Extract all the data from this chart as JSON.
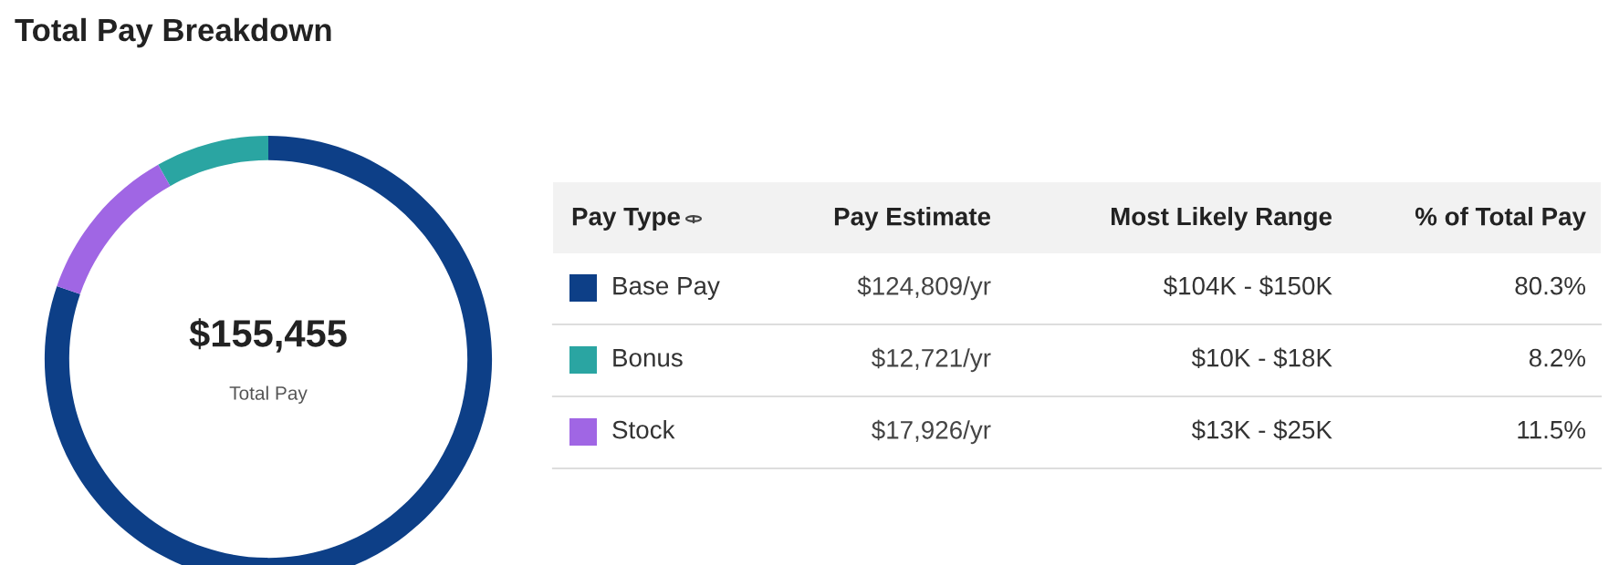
{
  "chart_data": {
    "type": "donut",
    "title": "Total Pay Breakdown",
    "categories": [
      "Base Pay",
      "Bonus",
      "Stock"
    ],
    "values": [
      80.3,
      8.2,
      11.5
    ],
    "colors": [
      "#0d3f87",
      "#2aa5a2",
      "#a066e4"
    ],
    "value_labels": [
      "80.3%",
      "8.2%",
      "11.5%"
    ],
    "legend": "right",
    "annotations": [
      "$155,455",
      "Total Pay",
      "Pay Type",
      "Pay Estimate",
      "Most Likely Range",
      "% of Total Pay",
      "$124,809/yr",
      "$104K - $150K",
      "$12,721/yr",
      "$10K - $18K",
      "$17,926/yr",
      "$13K - $25K"
    ]
  }
}
